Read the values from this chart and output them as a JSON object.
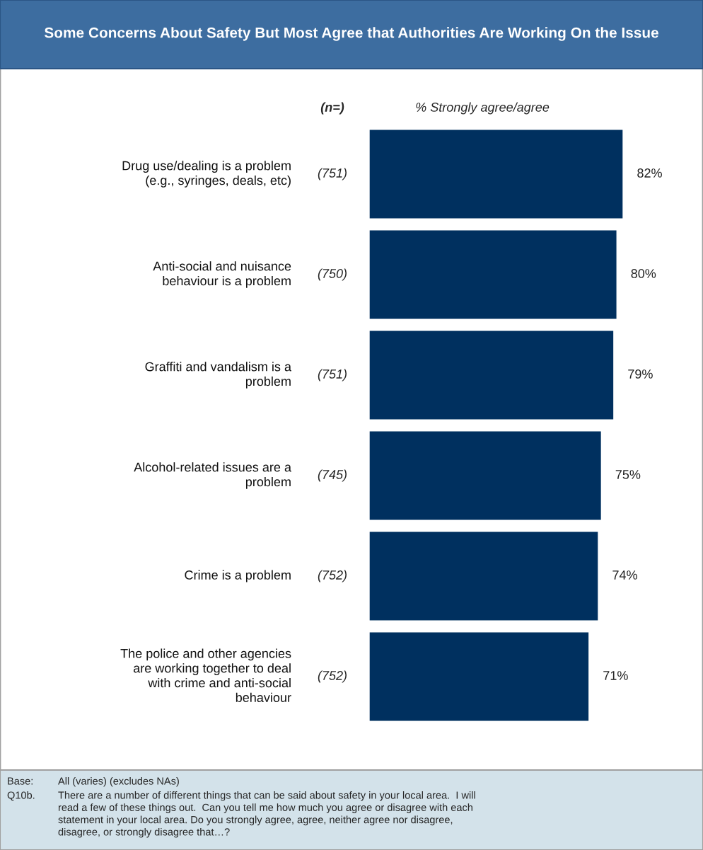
{
  "chart_data": {
    "type": "bar",
    "orientation": "horizontal",
    "title": "Some Concerns About Safety But Most Agree that Authorities Are Working On the Issue",
    "categories": [
      "Drug use/dealing is a problem\n(e.g., syringes, deals, etc)",
      "Anti-social and nuisance\nbehaviour is a problem",
      "Graffiti and vandalism is a\nproblem",
      "Alcohol-related issues are a\nproblem",
      "Crime is a problem",
      "The police and other agencies\nare working together to deal\nwith crime and anti-social\nbehaviour"
    ],
    "values": [
      82,
      80,
      79,
      75,
      74,
      71
    ],
    "color": "#00305f",
    "data_labels": true,
    "value_labels": [
      "82%",
      "80%",
      "79%",
      "75%",
      "74%",
      "71%"
    ],
    "xlabel": "% Strongly agree/agree",
    "annotations": [
      "(n=)",
      "(751)",
      "(750)",
      "(751)",
      "(745)",
      "(752)",
      "(752)",
      "Base: All (varies) (excludes NAs)",
      "Q10b. There are a number of different things that can be said about safety in your local area.  I will\nread a few of these things out.  Can you tell me how much you agree or disagree with each\nstatement in your local area. Do you strongly agree, agree, neither agree nor disagree,\ndisagree, or strongly disagree that…?"
    ]
  }
}
